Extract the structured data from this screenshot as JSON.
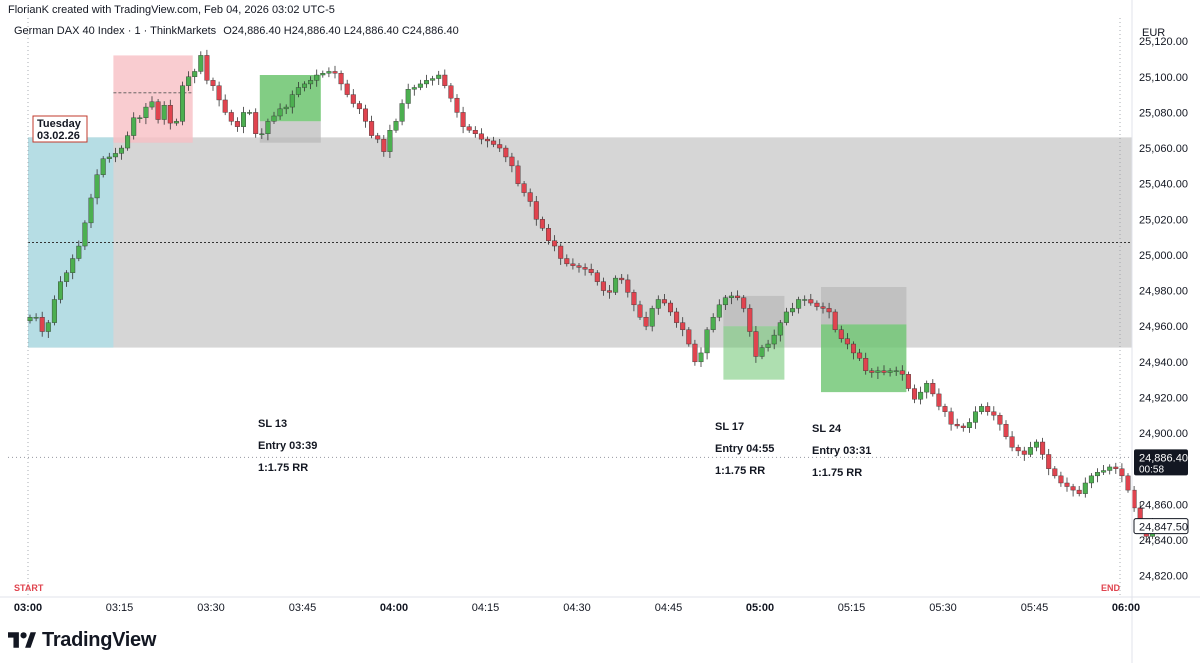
{
  "header": {
    "credit": "FlorianK created with TradingView.com, Feb 04, 2026 03:02 UTC-5",
    "symbol": "German DAX 40 Index · 1 · ThinkMarkets",
    "ohlc": "O24,886.40  H24,886.40  L24,886.40  C24,886.40",
    "currency": "EUR"
  },
  "colors": {
    "up": "#4CAF50",
    "down": "#E0444F",
    "range_box": "#D6D6D6",
    "start_box": "#B6DDE4",
    "target_green": "#6CC46F",
    "risk_red": "#F8BFC4",
    "risk_gray": "#B8B8B8",
    "marker_red": "#E0444F"
  },
  "annotations": {
    "day_label_line1": "Tuesday",
    "day_label_line2": "03.02.26",
    "start_label": "START",
    "end_label": "END",
    "trade1": {
      "sl": "SL 13",
      "entry": "Entry 03:39",
      "rr": "1:1.75 RR"
    },
    "trade2": {
      "sl": "SL 17",
      "entry": "Entry 04:55",
      "rr": "1:1.75 RR"
    },
    "trade3": {
      "sl": "SL 24",
      "entry": "Entry 03:31",
      "rr": "1:1.75 RR"
    }
  },
  "price_axis": {
    "ticks": [
      "25,120.00",
      "25,100.00",
      "25,080.00",
      "25,060.00",
      "25,040.00",
      "25,020.00",
      "25,000.00",
      "24,980.00",
      "24,960.00",
      "24,940.00",
      "24,920.00",
      "24,900.00",
      "24,860.00",
      "24,840.00",
      "24,820.00"
    ],
    "last_price": "24,886.40",
    "countdown": "00:58",
    "marker_price": "24,847.50"
  },
  "time_axis": {
    "labels": [
      "03:00",
      "03:15",
      "03:30",
      "03:45",
      "04:00",
      "04:15",
      "04:30",
      "04:45",
      "05:00",
      "05:15",
      "05:30",
      "05:45",
      "06:00"
    ],
    "bold": [
      "03:00",
      "04:00",
      "05:00",
      "06:00"
    ]
  },
  "branding": {
    "name": "TradingView"
  },
  "chart_data": {
    "type": "candlestick",
    "symbol": "German DAX 40 Index",
    "interval": "1",
    "x_start": "03:00",
    "x_end": "06:00",
    "y_range": [
      24808,
      25133
    ],
    "last_price": 24886.4,
    "range_box": {
      "from": "03:00",
      "to": "06:00",
      "high": 25066,
      "low": 24948,
      "mid": 25007
    },
    "positions": [
      {
        "from": "03:14",
        "to": "03:27",
        "entry": 25091,
        "top": 25112,
        "bottom": 25063,
        "kind": "risk-red"
      },
      {
        "from": "03:38",
        "to": "03:48",
        "entry": 25075,
        "top": 25101,
        "bottom": 25063,
        "kind": "target-green"
      },
      {
        "from": "04:54",
        "to": "05:04",
        "entry": 24960,
        "top": 24977,
        "bottom": 24930,
        "kind": "target-green"
      },
      {
        "from": "05:10",
        "to": "05:24",
        "entry": 24961,
        "top": 24982,
        "bottom": 24923,
        "kind": "target-green"
      }
    ],
    "closes": [
      24965,
      24965,
      24957,
      24962,
      24975,
      24985,
      24990,
      24998,
      25005,
      25018,
      25032,
      25045,
      25054,
      25055,
      25057,
      25060,
      25067,
      25077,
      25077,
      25083,
      25086,
      25076,
      25084,
      25074,
      25075,
      25095,
      25100,
      25103,
      25112,
      25098,
      25095,
      25087,
      25080,
      25075,
      25072,
      25080,
      25080,
      25068,
      25068,
      25075,
      25078,
      25082,
      25083,
      25090,
      25094,
      25096,
      25098,
      25101,
      25102,
      25103,
      25102,
      25096,
      25090,
      25085,
      25082,
      25075,
      25067,
      25065,
      25058,
      25070,
      25075,
      25085,
      25093,
      25094,
      25096,
      25098,
      25099,
      25101,
      25095,
      25088,
      25080,
      25072,
      25070,
      25068,
      25065,
      25064,
      25062,
      25060,
      25055,
      25050,
      25040,
      25035,
      25030,
      25020,
      25015,
      25008,
      25005,
      24998,
      24995,
      24994,
      24993,
      24992,
      24990,
      24985,
      24980,
      24979,
      24987,
      24986,
      24979,
      24972,
      24965,
      24960,
      24970,
      24975,
      24973,
      24968,
      24962,
      24958,
      24950,
      24940,
      24945,
      24958,
      24965,
      24972,
      24976,
      24977,
      24976,
      24970,
      24957,
      24943,
      24948,
      24950,
      24955,
      24962,
      24968,
      24970,
      24975,
      24975,
      24973,
      24971,
      24970,
      24968,
      24958,
      24953,
      24950,
      24945,
      24942,
      24935,
      24934,
      24935,
      24934,
      24935,
      24935,
      24933,
      24925,
      24919,
      24923,
      24928,
      24922,
      24915,
      24912,
      24905,
      24904,
      24903,
      24906,
      24912,
      24915,
      24912,
      24910,
      24905,
      24898,
      24892,
      24890,
      24888,
      24892,
      24895,
      24888,
      24880,
      24876,
      24872,
      24870,
      24868,
      24866,
      24872,
      24876,
      24878,
      24879,
      24881,
      24880,
      24876,
      24868,
      24858,
      24848,
      24842,
      24850
    ]
  }
}
